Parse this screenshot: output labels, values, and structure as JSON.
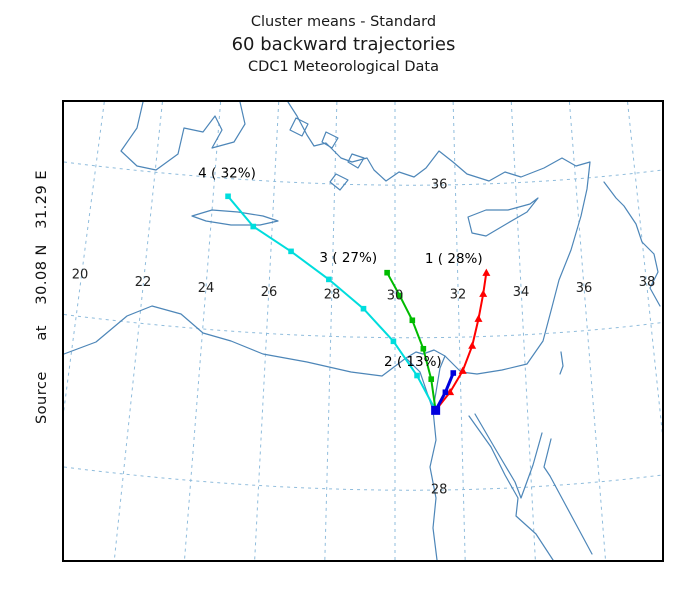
{
  "titles": {
    "line1": "Cluster means - Standard",
    "line2": "60 backward trajectories",
    "line3": "CDC1 Meteorological Data"
  },
  "side_label": {
    "text": "Source      at    30.08 N   31.29 E"
  },
  "chart_data": {
    "type": "line",
    "title": "Cluster means - Standard",
    "subtitle": "60 backward trajectories",
    "meteorology_label": "CDC1 Meteorological Data",
    "trajectory_count": 60,
    "direction": "backward",
    "source_location": {
      "lat_deg_n": 30.08,
      "lon_deg_e": 31.29
    },
    "source_marker_color": "#0000dd",
    "grid": {
      "lon_lines": [
        20,
        22,
        24,
        26,
        28,
        30,
        32,
        34,
        36,
        38
      ],
      "lat_lines": [
        28,
        32,
        36
      ],
      "lon_labels": [
        20,
        22,
        24,
        26,
        28,
        30,
        32,
        34,
        36,
        38
      ],
      "lon_label_lat": 33.1,
      "lat_labels": [
        36,
        28
      ],
      "lat_label_lon": 31.4,
      "grid_color": "#8fbcdc",
      "coast_color": "#4d86b8"
    },
    "clusters": [
      {
        "id": 1,
        "label": "1 ( 28%)",
        "percent": 28,
        "color": "#ff0000",
        "marker": "triangle",
        "line_width": 2,
        "label_pos": [
          30.95,
          33.95
        ],
        "points": [
          [
            31.29,
            30.08
          ],
          [
            31.75,
            30.55
          ],
          [
            32.15,
            31.1
          ],
          [
            32.45,
            31.75
          ],
          [
            32.65,
            32.45
          ],
          [
            32.8,
            33.1
          ],
          [
            32.9,
            33.65
          ]
        ]
      },
      {
        "id": 2,
        "label": "2 ( 13%)",
        "percent": 13,
        "color": "#0000dd",
        "marker": "square",
        "line_width": 3,
        "label_pos": [
          29.65,
          31.25
        ],
        "points": [
          [
            31.29,
            30.08
          ],
          [
            31.6,
            30.55
          ],
          [
            31.85,
            31.05
          ]
        ]
      },
      {
        "id": 3,
        "label": "3 ( 27%)",
        "percent": 27,
        "color": "#00bb00",
        "marker": "square",
        "line_width": 2,
        "label_pos": [
          27.6,
          33.95
        ],
        "points": [
          [
            31.29,
            30.08
          ],
          [
            31.15,
            30.9
          ],
          [
            30.9,
            31.7
          ],
          [
            30.55,
            32.45
          ],
          [
            30.15,
            33.1
          ],
          [
            29.75,
            33.7
          ]
        ]
      },
      {
        "id": 4,
        "label": "4 ( 32%)",
        "percent": 32,
        "color": "#00dddd",
        "marker": "square",
        "line_width": 2,
        "label_pos": [
          23.75,
          35.98
        ],
        "points": [
          [
            31.29,
            30.08
          ],
          [
            30.7,
            31.0
          ],
          [
            29.95,
            31.9
          ],
          [
            29.0,
            32.75
          ],
          [
            27.9,
            33.5
          ],
          [
            26.7,
            34.2
          ],
          [
            25.5,
            34.8
          ],
          [
            24.7,
            35.55
          ]
        ]
      }
    ]
  }
}
